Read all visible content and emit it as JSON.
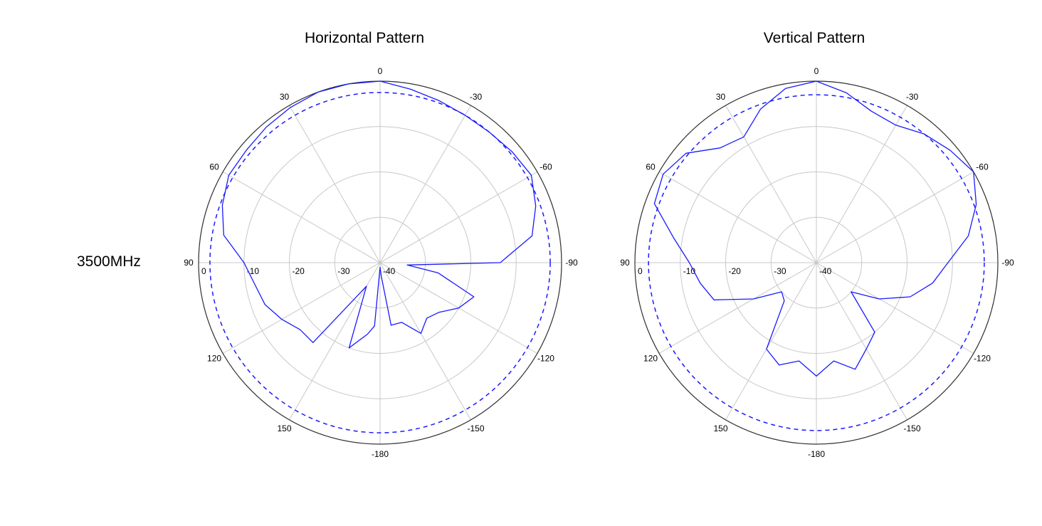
{
  "frequency_label": "3500MHz",
  "chart_data": [
    {
      "type": "polar-line",
      "title": "Horizontal Pattern",
      "angle_tick_labels": [
        "0",
        "-30",
        "-60",
        "-90",
        "-120",
        "-150",
        "-180",
        "150",
        "120",
        "90",
        "60",
        "30"
      ],
      "radial_tick_labels": [
        "0",
        "-10",
        "-20",
        "-30",
        "-40"
      ],
      "rlim": [
        -40,
        0
      ],
      "grid": true,
      "series": [
        {
          "style": "solid",
          "color": "#1a1aff",
          "angles": [
            0,
            -10,
            -20,
            -30,
            -40,
            -50,
            -60,
            -70,
            -80,
            -90,
            -95,
            -100,
            -110,
            -120,
            -130,
            -140,
            -150,
            -160,
            -170,
            -175,
            180,
            175,
            170,
            160,
            150,
            140,
            130,
            120,
            110,
            100,
            90,
            80,
            70,
            60,
            50,
            40,
            30,
            20,
            10
          ],
          "gain_db": [
            0,
            -1.2,
            -2.0,
            -2.5,
            -2.5,
            -2.0,
            -1.5,
            -3.5,
            -6.0,
            -13.5,
            -34,
            -27,
            -18,
            -20,
            -23,
            -24,
            -22,
            -26,
            -26,
            -37,
            -39,
            -26,
            -24,
            -20,
            -34,
            -17,
            -17,
            -15,
            -13,
            -12,
            -10,
            -5,
            -3,
            -1.5,
            -1.5,
            -1.0,
            -0.5,
            0,
            0
          ]
        },
        {
          "style": "dashed",
          "color": "#1a1aff",
          "angles": [
            0,
            30,
            60,
            90,
            120,
            150,
            180,
            -150,
            -120,
            -90,
            -60,
            -30
          ],
          "gain_db": [
            -2.5,
            -2.5,
            -2.5,
            -2.5,
            -2.5,
            -2.5,
            -2.5,
            -2.5,
            -2.5,
            -2.5,
            -2.5,
            -2.5
          ]
        }
      ]
    },
    {
      "type": "polar-line",
      "title": "Vertical Pattern",
      "angle_tick_labels": [
        "0",
        "-30",
        "-60",
        "-90",
        "-120",
        "-150",
        "-180",
        "150",
        "120",
        "90",
        "60",
        "30"
      ],
      "radial_tick_labels": [
        "0",
        "-10",
        "-20",
        "-30",
        "-40"
      ],
      "rlim": [
        -40,
        0
      ],
      "grid": true,
      "series": [
        {
          "style": "solid",
          "color": "#1a1aff",
          "angles": [
            0,
            -10,
            -20,
            -30,
            -40,
            -50,
            -60,
            -70,
            -80,
            -90,
            -100,
            -110,
            -120,
            -130,
            -140,
            -150,
            -160,
            -170,
            180,
            170,
            160,
            150,
            140,
            130,
            120,
            110,
            100,
            90,
            80,
            70,
            60,
            50,
            40,
            30,
            20,
            10
          ],
          "gain_db": [
            0,
            -2.0,
            -4.5,
            -5.0,
            -3.0,
            -1.5,
            0,
            -2.5,
            -6.0,
            -11,
            -14,
            -18,
            -24,
            -30,
            -20,
            -18,
            -15,
            -18,
            -15,
            -18,
            -16,
            -18,
            -29,
            -30,
            -24,
            -16,
            -14,
            -12,
            -8,
            -2,
            -1.0,
            -2.5,
            -7.0,
            -8.0,
            -4.0,
            -1.0
          ]
        },
        {
          "style": "dashed",
          "color": "#1a1aff",
          "angles": [
            0,
            30,
            60,
            90,
            120,
            150,
            180,
            -150,
            -120,
            -90,
            -60,
            -30
          ],
          "gain_db": [
            -3.0,
            -3.0,
            -3.0,
            -3.0,
            -3.0,
            -3.0,
            -3.0,
            -3.0,
            -3.0,
            -3.0,
            -3.0,
            -3.0
          ]
        }
      ]
    }
  ]
}
